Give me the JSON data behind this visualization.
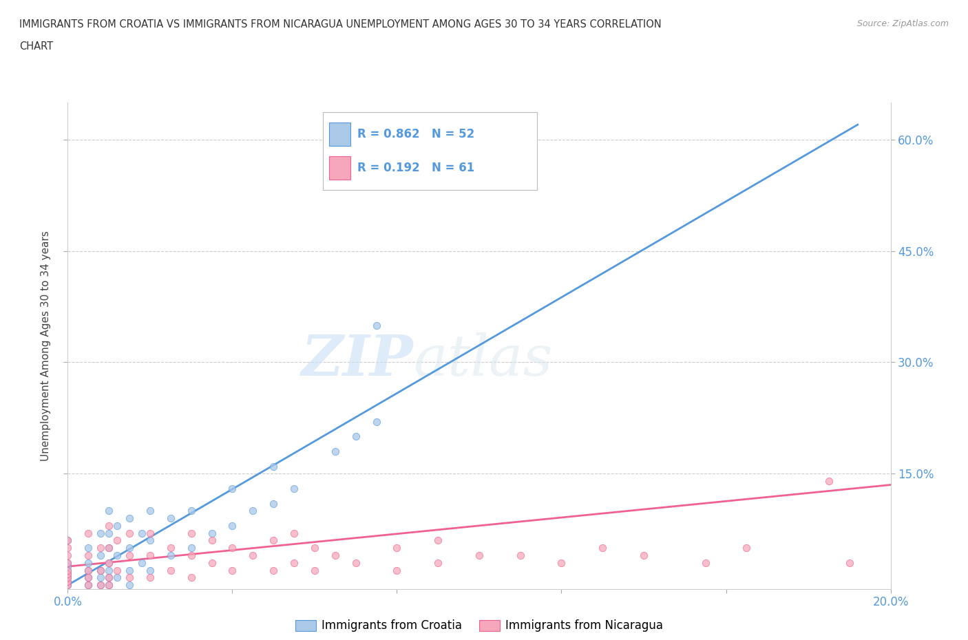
{
  "title_line1": "IMMIGRANTS FROM CROATIA VS IMMIGRANTS FROM NICARAGUA UNEMPLOYMENT AMONG AGES 30 TO 34 YEARS CORRELATION",
  "title_line2": "CHART",
  "source_text": "Source: ZipAtlas.com",
  "ylabel": "Unemployment Among Ages 30 to 34 years",
  "xlim": [
    0.0,
    0.2
  ],
  "ylim": [
    -0.005,
    0.65
  ],
  "xtick_positions": [
    0.0,
    0.04,
    0.08,
    0.12,
    0.16,
    0.2
  ],
  "xticklabels": [
    "0.0%",
    "",
    "",
    "",
    "",
    "20.0%"
  ],
  "ytick_positions": [
    0.15,
    0.3,
    0.45,
    0.6
  ],
  "yticklabels": [
    "15.0%",
    "30.0%",
    "45.0%",
    "60.0%"
  ],
  "croatia_R": 0.862,
  "croatia_N": 52,
  "nicaragua_R": 0.192,
  "nicaragua_N": 61,
  "croatia_color": "#aac8e8",
  "nicaragua_color": "#f5a8bc",
  "croatia_line_color": "#5599dd",
  "nicaragua_line_color": "#f06090",
  "tick_color": "#5599dd",
  "legend_label_croatia": "Immigrants from Croatia",
  "legend_label_nicaragua": "Immigrants from Nicaragua",
  "watermark_zip": "ZIP",
  "watermark_atlas": "atlas",
  "croatia_x": [
    0.0,
    0.0,
    0.0,
    0.0,
    0.0,
    0.0,
    0.0,
    0.0,
    0.005,
    0.005,
    0.005,
    0.005,
    0.005,
    0.008,
    0.008,
    0.008,
    0.008,
    0.008,
    0.01,
    0.01,
    0.01,
    0.01,
    0.01,
    0.01,
    0.01,
    0.012,
    0.012,
    0.012,
    0.015,
    0.015,
    0.015,
    0.015,
    0.018,
    0.018,
    0.02,
    0.02,
    0.02,
    0.025,
    0.025,
    0.03,
    0.03,
    0.035,
    0.04,
    0.04,
    0.045,
    0.05,
    0.05,
    0.055,
    0.065,
    0.07,
    0.075,
    0.075
  ],
  "croatia_y": [
    0.0,
    0.005,
    0.01,
    0.015,
    0.02,
    0.025,
    0.03,
    0.06,
    0.0,
    0.01,
    0.02,
    0.03,
    0.05,
    0.0,
    0.01,
    0.02,
    0.04,
    0.07,
    0.0,
    0.01,
    0.02,
    0.03,
    0.05,
    0.07,
    0.1,
    0.01,
    0.04,
    0.08,
    0.0,
    0.02,
    0.05,
    0.09,
    0.03,
    0.07,
    0.02,
    0.06,
    0.1,
    0.04,
    0.09,
    0.05,
    0.1,
    0.07,
    0.08,
    0.13,
    0.1,
    0.11,
    0.16,
    0.13,
    0.18,
    0.2,
    0.22,
    0.35
  ],
  "nicaragua_x": [
    0.0,
    0.0,
    0.0,
    0.0,
    0.0,
    0.0,
    0.0,
    0.0,
    0.0,
    0.005,
    0.005,
    0.005,
    0.005,
    0.005,
    0.008,
    0.008,
    0.008,
    0.01,
    0.01,
    0.01,
    0.01,
    0.01,
    0.012,
    0.012,
    0.015,
    0.015,
    0.015,
    0.02,
    0.02,
    0.02,
    0.025,
    0.025,
    0.03,
    0.03,
    0.03,
    0.035,
    0.035,
    0.04,
    0.04,
    0.045,
    0.05,
    0.05,
    0.055,
    0.055,
    0.06,
    0.06,
    0.065,
    0.07,
    0.08,
    0.08,
    0.09,
    0.09,
    0.1,
    0.11,
    0.12,
    0.13,
    0.14,
    0.155,
    0.165,
    0.185,
    0.19
  ],
  "nicaragua_y": [
    0.0,
    0.005,
    0.01,
    0.015,
    0.02,
    0.03,
    0.04,
    0.05,
    0.06,
    0.0,
    0.01,
    0.02,
    0.04,
    0.07,
    0.0,
    0.02,
    0.05,
    0.0,
    0.01,
    0.03,
    0.05,
    0.08,
    0.02,
    0.06,
    0.01,
    0.04,
    0.07,
    0.01,
    0.04,
    0.07,
    0.02,
    0.05,
    0.01,
    0.04,
    0.07,
    0.03,
    0.06,
    0.02,
    0.05,
    0.04,
    0.02,
    0.06,
    0.03,
    0.07,
    0.02,
    0.05,
    0.04,
    0.03,
    0.02,
    0.05,
    0.03,
    0.06,
    0.04,
    0.04,
    0.03,
    0.05,
    0.04,
    0.03,
    0.05,
    0.14,
    0.03
  ],
  "croatia_trend": [
    0.0,
    0.192,
    0.62
  ],
  "croatia_trend_x": [
    0.0,
    0.075,
    0.192
  ],
  "nicaragua_trend": [
    0.025,
    0.035,
    0.135
  ],
  "nicaragua_trend_x": [
    0.0,
    0.1,
    0.2
  ]
}
